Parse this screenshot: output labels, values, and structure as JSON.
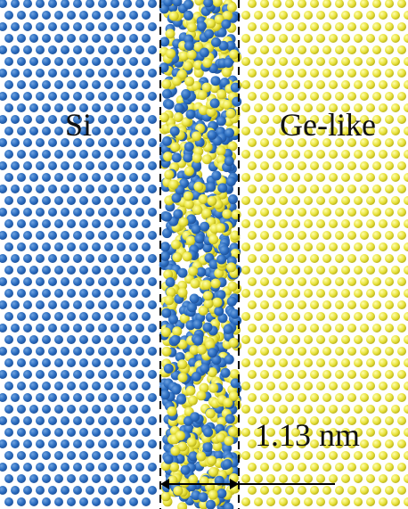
{
  "labels": {
    "left": "Si",
    "right": "Ge-like",
    "width": "1.13 nm"
  }
}
